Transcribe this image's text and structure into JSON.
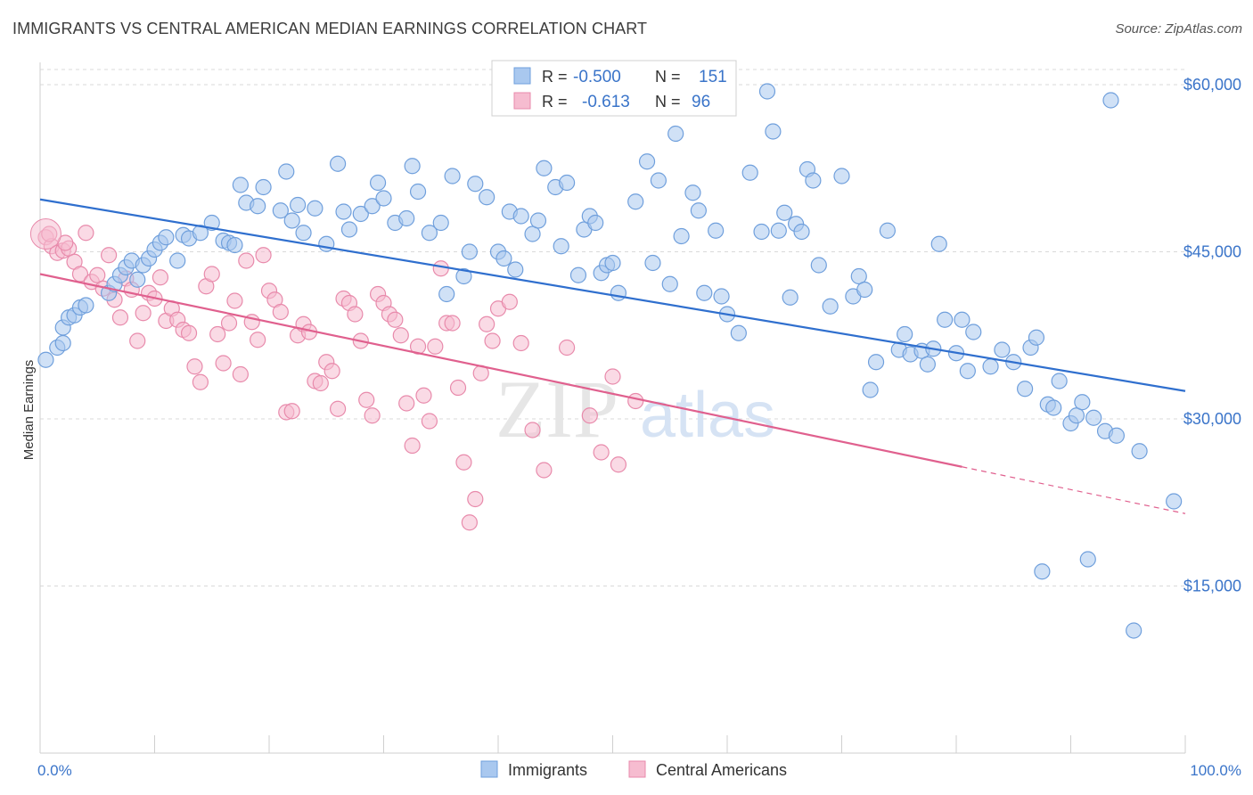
{
  "header": {
    "title": "IMMIGRANTS VS CENTRAL AMERICAN MEDIAN EARNINGS CORRELATION CHART",
    "source": "Source: ZipAtlas.com"
  },
  "watermark": {
    "zip": "ZIP",
    "atlas": "atlas"
  },
  "legend_stats": [
    {
      "r_label": "R =",
      "r_value": "-0.500",
      "n_label": "N =",
      "n_value": "151"
    },
    {
      "r_label": "R =",
      "r_value": "-0.613",
      "n_label": "N =",
      "n_value": "96"
    }
  ],
  "colors": {
    "immigrants_fill": "#a9c8ef",
    "immigrants_stroke": "#6f9fdc",
    "immigrants_line": "#2f6fce",
    "central_fill": "#f6bcd0",
    "central_stroke": "#e88aab",
    "central_line": "#e0608e",
    "value_text": "#3a74c9",
    "grid": "#d9d9d9"
  },
  "chart_data": {
    "type": "scatter",
    "ylabel": "Median Earnings",
    "xlim": [
      0,
      100
    ],
    "ylim": [
      0,
      62000
    ],
    "x_tick_labels": [
      "0.0%",
      "100.0%"
    ],
    "y_ticks": [
      15000,
      30000,
      45000,
      60000
    ],
    "y_tick_labels": [
      "$15,000",
      "$30,000",
      "$45,000",
      "$60,000"
    ],
    "grid": "horizontal dashed",
    "legend_position": "bottom-center",
    "series": [
      {
        "name": "Immigrants",
        "trend": {
          "x": [
            0,
            100
          ],
          "y": [
            49700,
            32500
          ]
        },
        "points": [
          [
            0.5,
            35300
          ],
          [
            1.5,
            36400
          ],
          [
            2,
            36800
          ],
          [
            2,
            38200
          ],
          [
            2.5,
            39100
          ],
          [
            3,
            39300
          ],
          [
            3.5,
            40000
          ],
          [
            4,
            40200
          ],
          [
            6,
            41300
          ],
          [
            6.5,
            42100
          ],
          [
            7,
            42900
          ],
          [
            7.5,
            43600
          ],
          [
            8,
            44200
          ],
          [
            8.5,
            42500
          ],
          [
            9,
            43800
          ],
          [
            9.5,
            44400
          ],
          [
            10,
            45200
          ],
          [
            10.5,
            45800
          ],
          [
            11,
            46300
          ],
          [
            12,
            44200
          ],
          [
            12.5,
            46500
          ],
          [
            13,
            46200
          ],
          [
            14,
            46700
          ],
          [
            15,
            47600
          ],
          [
            16,
            46000
          ],
          [
            16.5,
            45800
          ],
          [
            17,
            45600
          ],
          [
            17.5,
            51000
          ],
          [
            18,
            49400
          ],
          [
            19,
            49100
          ],
          [
            19.5,
            50800
          ],
          [
            21,
            48700
          ],
          [
            21.5,
            52200
          ],
          [
            22,
            47800
          ],
          [
            22.5,
            49200
          ],
          [
            23,
            46700
          ],
          [
            24,
            48900
          ],
          [
            25,
            45700
          ],
          [
            26,
            52900
          ],
          [
            26.5,
            48600
          ],
          [
            27,
            47000
          ],
          [
            28,
            48400
          ],
          [
            29,
            49100
          ],
          [
            29.5,
            51200
          ],
          [
            30,
            49800
          ],
          [
            31,
            47600
          ],
          [
            32,
            48000
          ],
          [
            32.5,
            52700
          ],
          [
            33,
            50400
          ],
          [
            34,
            46700
          ],
          [
            35,
            47600
          ],
          [
            35.5,
            41200
          ],
          [
            36,
            51800
          ],
          [
            37,
            42800
          ],
          [
            37.5,
            45000
          ],
          [
            38,
            51100
          ],
          [
            39,
            49900
          ],
          [
            40,
            45000
          ],
          [
            40.5,
            44400
          ],
          [
            41,
            48600
          ],
          [
            41.5,
            43400
          ],
          [
            42,
            48200
          ],
          [
            43,
            46600
          ],
          [
            43.5,
            47800
          ],
          [
            44,
            52500
          ],
          [
            45,
            50800
          ],
          [
            45.5,
            45500
          ],
          [
            46,
            51200
          ],
          [
            47,
            42900
          ],
          [
            47.5,
            47000
          ],
          [
            48,
            48200
          ],
          [
            48.5,
            47600
          ],
          [
            49,
            43100
          ],
          [
            49.5,
            43800
          ],
          [
            50,
            44000
          ],
          [
            50.5,
            41300
          ],
          [
            52,
            49500
          ],
          [
            53,
            53100
          ],
          [
            53.5,
            44000
          ],
          [
            54,
            51400
          ],
          [
            55,
            42100
          ],
          [
            55.5,
            55600
          ],
          [
            56,
            46400
          ],
          [
            57,
            50300
          ],
          [
            57.5,
            48700
          ],
          [
            58,
            41300
          ],
          [
            59,
            46900
          ],
          [
            59.5,
            41000
          ],
          [
            60,
            39400
          ],
          [
            61,
            37700
          ],
          [
            62,
            52100
          ],
          [
            63,
            46800
          ],
          [
            64,
            55800
          ],
          [
            64.5,
            46900
          ],
          [
            65,
            48500
          ],
          [
            65.5,
            40900
          ],
          [
            66,
            47500
          ],
          [
            66.5,
            46800
          ],
          [
            67,
            52400
          ],
          [
            67.5,
            51400
          ],
          [
            68,
            43800
          ],
          [
            69,
            40100
          ],
          [
            70,
            51800
          ],
          [
            71,
            41000
          ],
          [
            71.5,
            42800
          ],
          [
            72,
            41600
          ],
          [
            72.5,
            32600
          ],
          [
            73,
            35100
          ],
          [
            74,
            46900
          ],
          [
            75,
            36200
          ],
          [
            75.5,
            37600
          ],
          [
            76,
            35800
          ],
          [
            77,
            36100
          ],
          [
            77.5,
            34900
          ],
          [
            78,
            36300
          ],
          [
            78.5,
            45700
          ],
          [
            79,
            38900
          ],
          [
            80,
            35900
          ],
          [
            80.5,
            38900
          ],
          [
            81,
            34300
          ],
          [
            81.5,
            37800
          ],
          [
            83,
            34700
          ],
          [
            84,
            36200
          ],
          [
            85,
            35100
          ],
          [
            86,
            32700
          ],
          [
            86.5,
            36400
          ],
          [
            87,
            37300
          ],
          [
            88,
            31300
          ],
          [
            88.5,
            31000
          ],
          [
            89,
            33400
          ],
          [
            90,
            29600
          ],
          [
            90.5,
            30300
          ],
          [
            91,
            31500
          ],
          [
            92,
            30100
          ],
          [
            93,
            28900
          ],
          [
            94,
            28500
          ],
          [
            63.5,
            59400
          ],
          [
            87.5,
            16300
          ],
          [
            91.5,
            17400
          ],
          [
            93.5,
            58600
          ],
          [
            96,
            27100
          ],
          [
            99,
            22600
          ],
          [
            95.5,
            11000
          ]
        ]
      },
      {
        "name": "Central Americans",
        "trend": {
          "x": [
            0,
            80.5
          ],
          "y": [
            43000,
            25700
          ]
        },
        "trend_dashed": {
          "x": [
            80.5,
            100
          ],
          "y": [
            25700,
            21500
          ]
        },
        "points": [
          [
            0.5,
            46300
          ],
          [
            1,
            45500
          ],
          [
            1.5,
            44900
          ],
          [
            2,
            45100
          ],
          [
            2.5,
            45300
          ],
          [
            3,
            44100
          ],
          [
            3.5,
            43000
          ],
          [
            4,
            46700
          ],
          [
            4.5,
            42300
          ],
          [
            5,
            42900
          ],
          [
            5.5,
            41700
          ],
          [
            6,
            44700
          ],
          [
            6.5,
            40700
          ],
          [
            7,
            39100
          ],
          [
            7.5,
            42600
          ],
          [
            8,
            41600
          ],
          [
            8.5,
            37000
          ],
          [
            9,
            39500
          ],
          [
            9.5,
            41300
          ],
          [
            10,
            40800
          ],
          [
            10.5,
            42700
          ],
          [
            11,
            38800
          ],
          [
            11.5,
            39900
          ],
          [
            12,
            38900
          ],
          [
            12.5,
            38000
          ],
          [
            13,
            37700
          ],
          [
            13.5,
            34700
          ],
          [
            14,
            33300
          ],
          [
            14.5,
            41900
          ],
          [
            15,
            43000
          ],
          [
            15.5,
            37600
          ],
          [
            16,
            35000
          ],
          [
            16.5,
            38600
          ],
          [
            17,
            40600
          ],
          [
            17.5,
            34000
          ],
          [
            18,
            44200
          ],
          [
            18.5,
            38700
          ],
          [
            19,
            37100
          ],
          [
            19.5,
            44700
          ],
          [
            20,
            41500
          ],
          [
            20.5,
            40700
          ],
          [
            21,
            39600
          ],
          [
            21.5,
            30600
          ],
          [
            22,
            30700
          ],
          [
            22.5,
            37500
          ],
          [
            23,
            38500
          ],
          [
            23.5,
            37800
          ],
          [
            24,
            33400
          ],
          [
            24.5,
            33200
          ],
          [
            25,
            35100
          ],
          [
            25.5,
            34300
          ],
          [
            26,
            30900
          ],
          [
            26.5,
            40800
          ],
          [
            27,
            40400
          ],
          [
            27.5,
            39400
          ],
          [
            28,
            37000
          ],
          [
            28.5,
            31700
          ],
          [
            29,
            30300
          ],
          [
            29.5,
            41200
          ],
          [
            30,
            40400
          ],
          [
            30.5,
            39400
          ],
          [
            31,
            38900
          ],
          [
            31.5,
            37500
          ],
          [
            32,
            31400
          ],
          [
            32.5,
            27600
          ],
          [
            33,
            36500
          ],
          [
            33.5,
            32100
          ],
          [
            34,
            29800
          ],
          [
            34.5,
            36500
          ],
          [
            35,
            43500
          ],
          [
            35.5,
            38600
          ],
          [
            36,
            38600
          ],
          [
            36.5,
            32800
          ],
          [
            37,
            26100
          ],
          [
            37.5,
            20700
          ],
          [
            38,
            22800
          ],
          [
            38.5,
            34100
          ],
          [
            39,
            38500
          ],
          [
            39.5,
            37000
          ],
          [
            40,
            39900
          ],
          [
            41,
            40500
          ],
          [
            42,
            36800
          ],
          [
            43,
            29000
          ],
          [
            44,
            25400
          ],
          [
            46,
            36400
          ],
          [
            48,
            30300
          ],
          [
            49,
            27000
          ],
          [
            50,
            33800
          ],
          [
            50.5,
            25900
          ],
          [
            52,
            31600
          ],
          [
            0.8,
            46600
          ],
          [
            2.2,
            45800
          ]
        ]
      }
    ]
  }
}
